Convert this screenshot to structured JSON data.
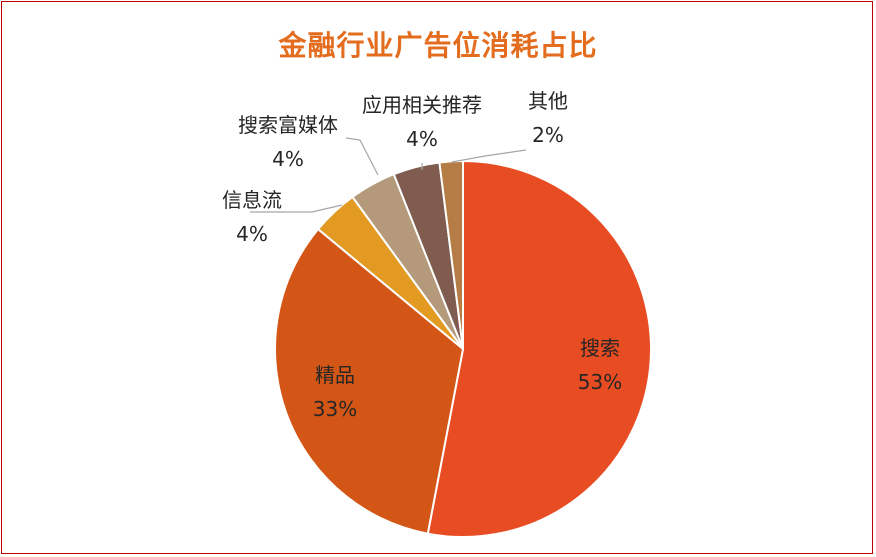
{
  "chart_data": {
    "type": "pie",
    "title": "金融行业广告位消耗占比",
    "slices": [
      {
        "label": "搜索",
        "value": 53,
        "value_label": "53%",
        "color": "#e84c22"
      },
      {
        "label": "精品",
        "value": 33,
        "value_label": "33%",
        "color": "#d35617"
      },
      {
        "label": "信息流",
        "value": 4,
        "value_label": "4%",
        "color": "#e29a22"
      },
      {
        "label": "搜索富媒体",
        "value": 4,
        "value_label": "4%",
        "color": "#b49a7a"
      },
      {
        "label": "应用相关推荐",
        "value": 4,
        "value_label": "4%",
        "color": "#7f5c4f"
      },
      {
        "label": "其他",
        "value": 2,
        "value_label": "2%",
        "color": "#b67c46"
      }
    ],
    "legend": "none",
    "label_position": "mixed-inside-outside"
  }
}
